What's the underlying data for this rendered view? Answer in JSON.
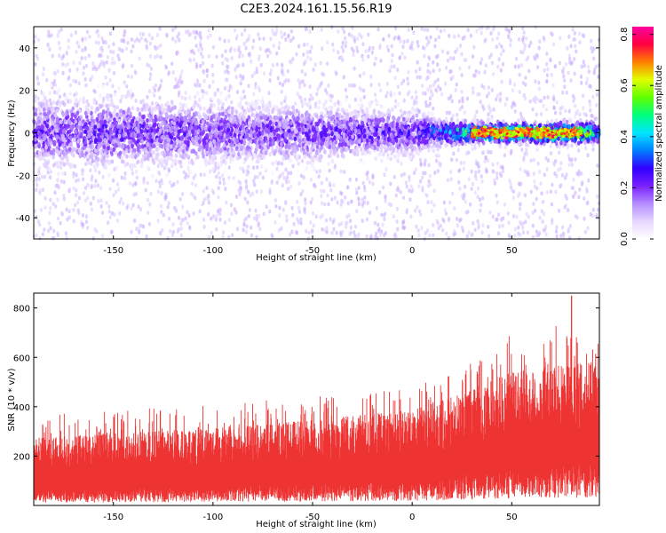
{
  "title": "C2E3.2024.161.15.56.R19",
  "colors": {
    "background": "#ffffff",
    "snr_fill": "#ee3333",
    "colormap": [
      "#ffffff",
      "#e6d6ff",
      "#b48cff",
      "#7a20ff",
      "#3000ff",
      "#0080ff",
      "#00e6ff",
      "#00ff80",
      "#60ff00",
      "#e0ff00",
      "#ff8000",
      "#ff0040",
      "#ff00a0"
    ]
  },
  "chart_data": [
    {
      "type": "heatmap",
      "xlabel": "Height of straight line (km)",
      "ylabel": "Frequency (Hz)",
      "xlim": [
        -190,
        94
      ],
      "ylim": [
        -50,
        50
      ],
      "x_ticks": [
        -150,
        -100,
        -50,
        0,
        50
      ],
      "x_tick_labels": [
        "-150",
        "-100",
        "-50",
        "0",
        "50"
      ],
      "y_ticks": [
        -40,
        -20,
        0,
        20,
        40
      ],
      "y_tick_labels": [
        "-40",
        "-20",
        "0",
        "20",
        "40"
      ],
      "colorbar": {
        "label": "Normalized spectral amplitude",
        "range": [
          0,
          0.83
        ],
        "ticks": [
          0.0,
          0.2,
          0.4,
          0.6,
          0.8
        ],
        "tick_labels": [
          "0.0",
          "0.2",
          "0.4",
          "0.6",
          "0.8"
        ]
      },
      "description_values": {
        "band_center_hz": 0,
        "band_halfwidth_hz_low_height": 10,
        "band_halfwidth_hz_high_height": 3,
        "peak_amplitude_region_km": [
          30,
          85
        ],
        "peak_amplitude": 0.78
      },
      "trend": [
        {
          "x": -190,
          "amplitude": 0.25,
          "halfwidth": 10
        },
        {
          "x": -150,
          "amplitude": 0.25,
          "halfwidth": 10
        },
        {
          "x": -100,
          "amplitude": 0.24,
          "halfwidth": 9
        },
        {
          "x": -50,
          "amplitude": 0.24,
          "halfwidth": 8
        },
        {
          "x": 0,
          "amplitude": 0.27,
          "halfwidth": 6
        },
        {
          "x": 15,
          "amplitude": 0.38,
          "halfwidth": 4
        },
        {
          "x": 30,
          "amplitude": 0.6,
          "halfwidth": 3
        },
        {
          "x": 60,
          "amplitude": 0.75,
          "halfwidth": 3
        },
        {
          "x": 85,
          "amplitude": 0.72,
          "halfwidth": 3
        },
        {
          "x": 94,
          "amplitude": 0.45,
          "halfwidth": 3
        }
      ]
    },
    {
      "type": "area",
      "xlabel": "Height of straight line (km)",
      "ylabel": "SNR (10 * v/v)",
      "xlim": [
        -190,
        94
      ],
      "ylim": [
        0,
        860
      ],
      "x_ticks": [
        -150,
        -100,
        -50,
        0,
        50
      ],
      "x_tick_labels": [
        "-150",
        "-100",
        "-50",
        "0",
        "50"
      ],
      "y_ticks": [
        200,
        400,
        600,
        800
      ],
      "y_tick_labels": [
        "200",
        "400",
        "600",
        "800"
      ],
      "series": [
        {
          "x": [
            -190,
            -150,
            -100,
            -50,
            0,
            25,
            50,
            75,
            94
          ],
          "lower": [
            60,
            60,
            70,
            80,
            90,
            110,
            140,
            150,
            160
          ],
          "upper_typical": [
            260,
            280,
            300,
            330,
            370,
            430,
            520,
            540,
            560
          ],
          "upper_peaks": [
            380,
            390,
            410,
            440,
            480,
            560,
            700,
            760,
            720
          ]
        }
      ],
      "max_value": 850,
      "max_at_x": 80
    }
  ]
}
